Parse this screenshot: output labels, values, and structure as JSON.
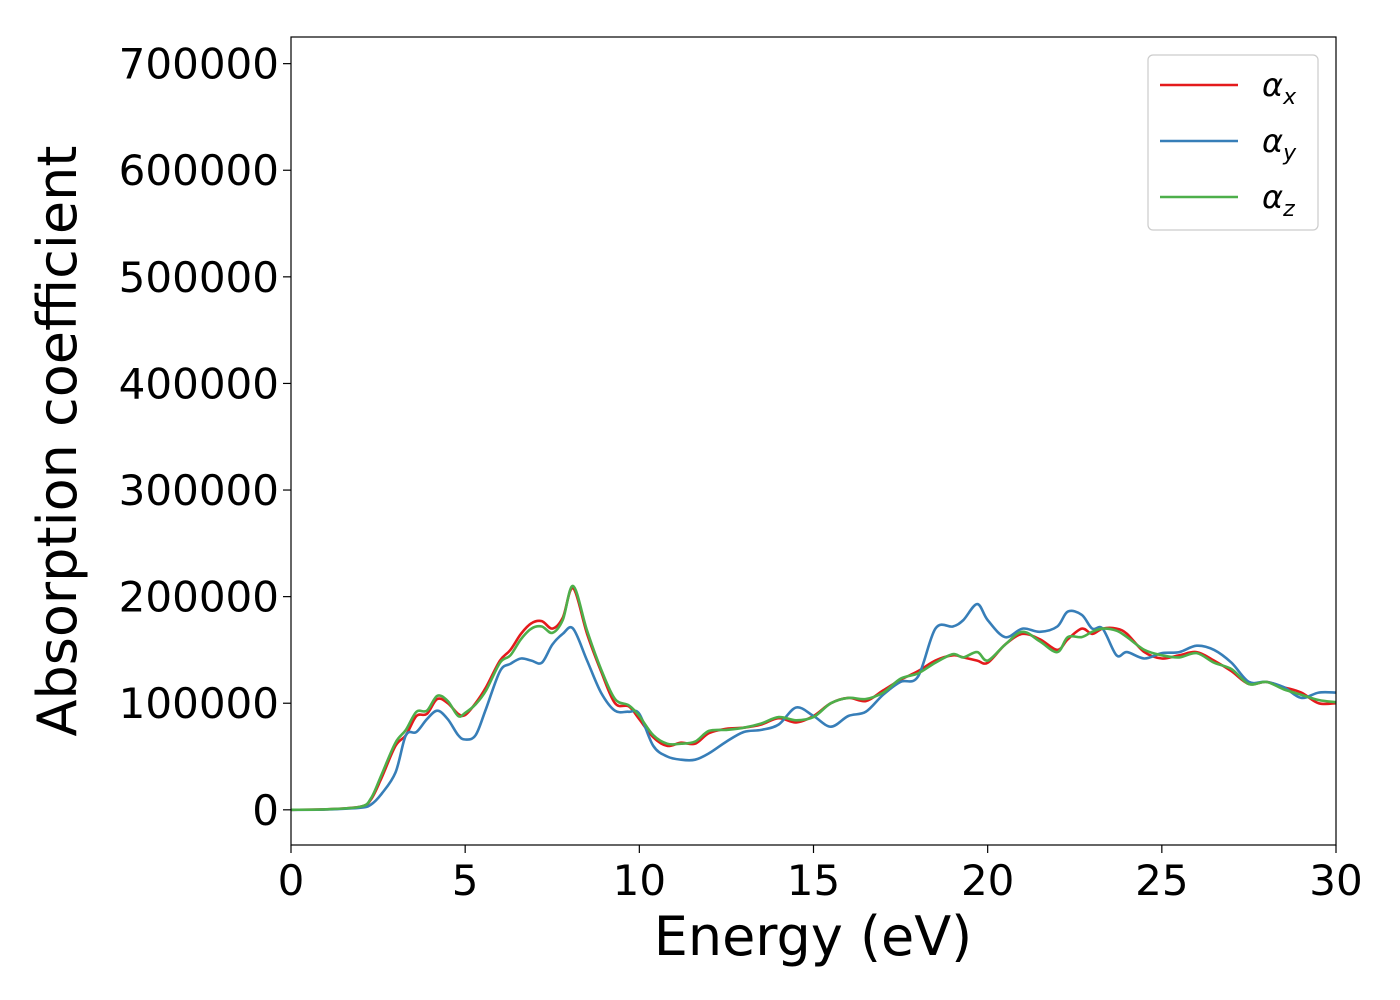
{
  "chart_data": {
    "type": "line",
    "title": "",
    "xlabel": "Energy (eV)",
    "ylabel": "Absorption coefficient",
    "xlim": [
      0,
      30
    ],
    "ylim": [
      -33000,
      725000
    ],
    "xticks": [
      0,
      5,
      10,
      15,
      20,
      25,
      30
    ],
    "xtick_labels": [
      "0",
      "5",
      "10",
      "15",
      "20",
      "25",
      "30"
    ],
    "yticks": [
      0,
      100000,
      200000,
      300000,
      400000,
      500000,
      600000,
      700000
    ],
    "ytick_labels": [
      "0",
      "100000",
      "200000",
      "300000",
      "400000",
      "500000",
      "600000",
      "700000"
    ],
    "grid": false,
    "legend_position": "top-right",
    "x": [
      0,
      1,
      2,
      2.3,
      2.6,
      3,
      3.3,
      3.6,
      3.9,
      4.2,
      4.5,
      4.8,
      5,
      5.3,
      5.6,
      6,
      6.3,
      6.6,
      6.9,
      7.2,
      7.5,
      7.8,
      8.1,
      8.5,
      8.9,
      9.3,
      9.7,
      10,
      10.4,
      10.8,
      11.2,
      11.6,
      12,
      12.5,
      13,
      13.5,
      14,
      14.5,
      15,
      15.5,
      16,
      16.5,
      17,
      17.5,
      18,
      18.5,
      19,
      19.3,
      19.7,
      20,
      20.5,
      21,
      21.5,
      22,
      22.3,
      22.7,
      23,
      23.3,
      23.7,
      24,
      24.5,
      25,
      25.5,
      26,
      26.5,
      27,
      27.5,
      28,
      28.5,
      29,
      29.5,
      30
    ],
    "series": [
      {
        "name": "α",
        "subscript": "x",
        "color": "#e41a1c",
        "values": [
          0,
          500,
          3000,
          10000,
          30000,
          60000,
          70000,
          88000,
          90000,
          104000,
          100000,
          90000,
          89000,
          100000,
          115000,
          140000,
          150000,
          165000,
          175000,
          177000,
          170000,
          180000,
          208000,
          165000,
          130000,
          100000,
          97000,
          85000,
          68000,
          60000,
          63000,
          62000,
          72000,
          76000,
          77000,
          80000,
          86000,
          82000,
          88000,
          100000,
          105000,
          102000,
          112000,
          122000,
          130000,
          140000,
          145000,
          143000,
          140000,
          138000,
          155000,
          165000,
          160000,
          150000,
          160000,
          170000,
          165000,
          170000,
          170000,
          165000,
          148000,
          142000,
          145000,
          148000,
          140000,
          130000,
          118000,
          120000,
          115000,
          110000,
          100000,
          100000
        ]
      },
      {
        "name": "α",
        "subscript": "y",
        "color": "#377eb8",
        "values": [
          0,
          300,
          2000,
          5000,
          15000,
          35000,
          70000,
          73000,
          85000,
          93000,
          85000,
          70000,
          66000,
          70000,
          95000,
          130000,
          137000,
          142000,
          140000,
          138000,
          155000,
          165000,
          170000,
          140000,
          110000,
          93000,
          92000,
          90000,
          60000,
          50000,
          47000,
          47000,
          53000,
          64000,
          73000,
          75000,
          80000,
          96000,
          88000,
          78000,
          88000,
          92000,
          108000,
          120000,
          125000,
          170000,
          172000,
          178000,
          193000,
          178000,
          162000,
          170000,
          167000,
          172000,
          186000,
          183000,
          170000,
          170000,
          145000,
          148000,
          142000,
          147000,
          148000,
          154000,
          150000,
          138000,
          120000,
          120000,
          115000,
          105000,
          110000,
          110000
        ]
      },
      {
        "name": "α",
        "subscript": "z",
        "color": "#4daf4a",
        "values": [
          0,
          500,
          3000,
          11000,
          33000,
          63000,
          75000,
          92000,
          93000,
          107000,
          102000,
          88000,
          91000,
          99000,
          112000,
          138000,
          145000,
          160000,
          170000,
          172000,
          166000,
          178000,
          210000,
          168000,
          132000,
          104000,
          98000,
          88000,
          70000,
          62000,
          62000,
          64000,
          74000,
          75000,
          77000,
          81000,
          87000,
          84000,
          87000,
          100000,
          105000,
          104000,
          110000,
          123000,
          128000,
          138000,
          146000,
          143000,
          148000,
          140000,
          155000,
          167000,
          158000,
          148000,
          162000,
          162000,
          167000,
          170000,
          168000,
          162000,
          150000,
          145000,
          143000,
          147000,
          138000,
          132000,
          118000,
          120000,
          113000,
          108000,
          103000,
          101000
        ]
      }
    ]
  }
}
